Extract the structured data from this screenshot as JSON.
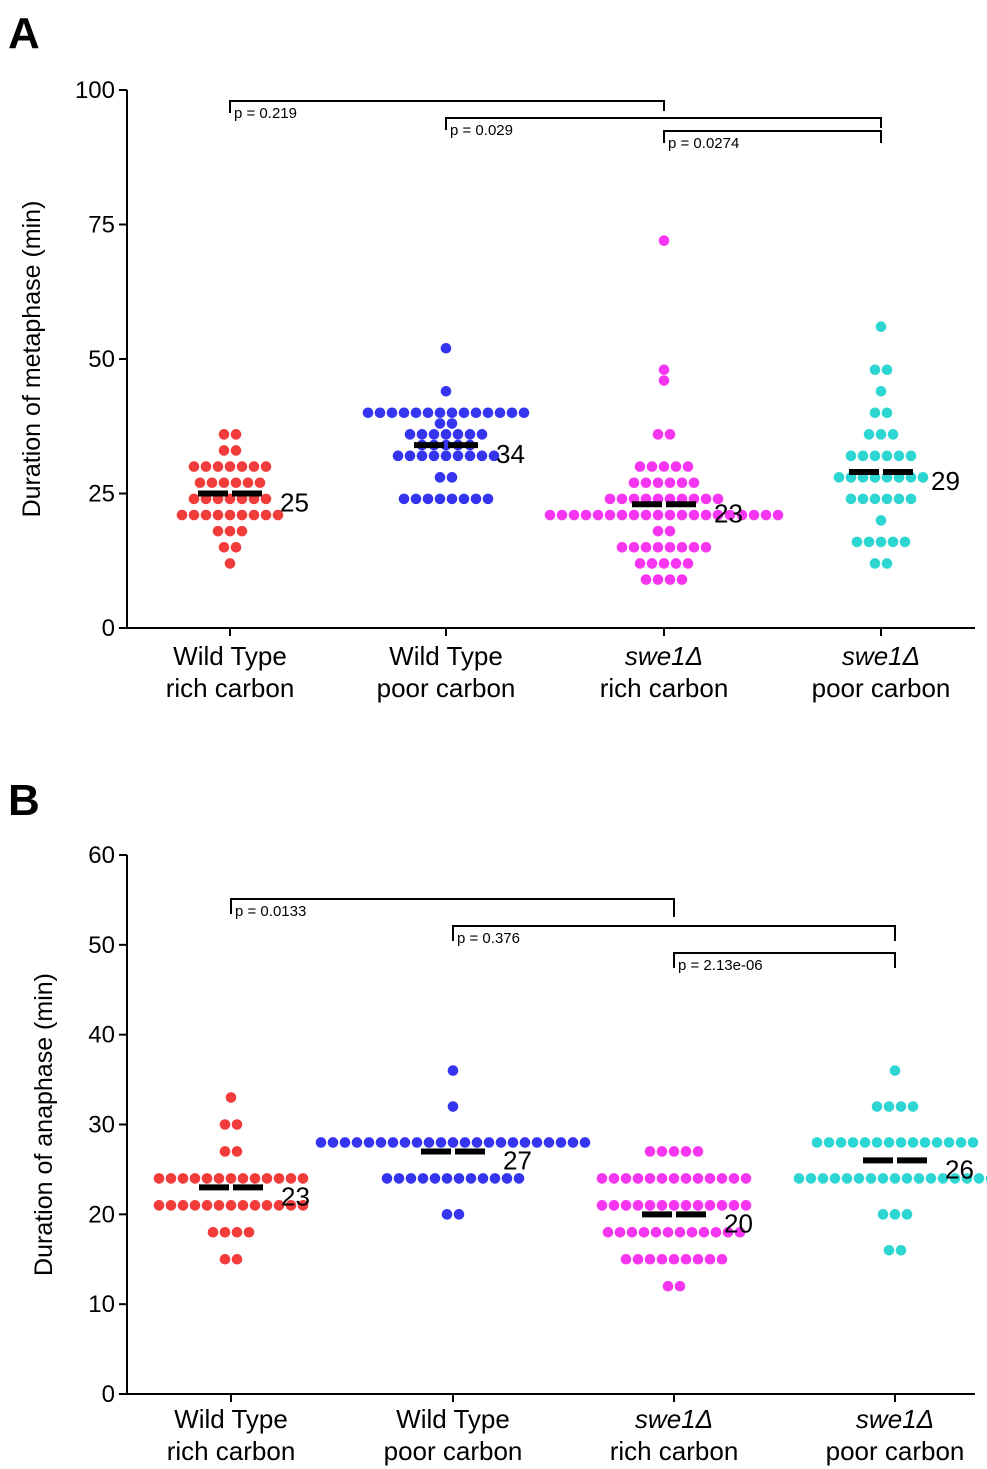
{
  "chart_data": [
    {
      "type": "scatter",
      "panel": "A",
      "ylabel": "Duration of metaphase (min)",
      "ylim": [
        0,
        100
      ],
      "yticks": [
        0,
        25,
        50,
        75,
        100
      ],
      "categories": [
        {
          "line1": "Wild Type",
          "line2": "rich carbon",
          "italic": false
        },
        {
          "line1": "Wild Type",
          "line2": "poor carbon",
          "italic": false
        },
        {
          "line1": "swe1Δ",
          "line2": "rich carbon",
          "italic": true
        },
        {
          "line1": "swe1Δ",
          "line2": "poor carbon",
          "italic": true
        }
      ],
      "series": [
        {
          "color": "#f23b3b",
          "median": 25,
          "median_label": "25",
          "values": [
            36,
            36,
            33,
            33,
            30,
            30,
            30,
            30,
            30,
            30,
            30,
            27,
            27,
            27,
            27,
            27,
            27,
            24,
            24,
            24,
            24,
            24,
            24,
            24,
            21,
            21,
            21,
            21,
            21,
            21,
            21,
            21,
            21,
            18,
            18,
            18,
            15,
            15,
            12
          ]
        },
        {
          "color": "#3535f0",
          "median": 34,
          "median_label": "34",
          "values": [
            52,
            44,
            40,
            40,
            40,
            40,
            40,
            40,
            40,
            40,
            40,
            40,
            40,
            40,
            40,
            40,
            38,
            38,
            36,
            36,
            36,
            36,
            36,
            36,
            36,
            34,
            34,
            34,
            34,
            34,
            32,
            32,
            32,
            32,
            32,
            32,
            32,
            32,
            32,
            28,
            28,
            24,
            24,
            24,
            24,
            24,
            24,
            24,
            24
          ]
        },
        {
          "color": "#f535f0",
          "median": 23,
          "median_label": "23",
          "values": [
            72,
            48,
            46,
            36,
            36,
            30,
            30,
            30,
            30,
            30,
            27,
            27,
            27,
            27,
            27,
            27,
            24,
            24,
            24,
            24,
            24,
            24,
            24,
            24,
            24,
            24,
            21,
            21,
            21,
            21,
            21,
            21,
            21,
            21,
            21,
            21,
            21,
            21,
            21,
            21,
            21,
            21,
            21,
            21,
            21,
            21,
            18,
            18,
            15,
            15,
            15,
            15,
            15,
            15,
            15,
            15,
            12,
            12,
            12,
            12,
            12,
            9,
            9,
            9,
            9
          ]
        },
        {
          "color": "#2ed6d2",
          "median": 29,
          "median_label": "29",
          "values": [
            56,
            48,
            48,
            44,
            40,
            40,
            36,
            36,
            36,
            32,
            32,
            32,
            32,
            32,
            32,
            28,
            28,
            28,
            28,
            28,
            28,
            28,
            28,
            24,
            24,
            24,
            24,
            24,
            24,
            20,
            16,
            16,
            16,
            16,
            16,
            12,
            12
          ]
        }
      ],
      "comparisons": [
        {
          "from": 0,
          "to": 2,
          "label": "p = 0.219"
        },
        {
          "from": 1,
          "to": 3,
          "label": "p = 0.029"
        },
        {
          "from": 2,
          "to": 3,
          "label": "p = 0.0274"
        }
      ]
    },
    {
      "type": "scatter",
      "panel": "B",
      "ylabel": "Duration of anaphase (min)",
      "ylim": [
        0,
        60
      ],
      "yticks": [
        0,
        10,
        20,
        30,
        40,
        50,
        60
      ],
      "categories": [
        {
          "line1": "Wild Type",
          "line2": "rich carbon",
          "italic": false
        },
        {
          "line1": "Wild Type",
          "line2": "poor carbon",
          "italic": false
        },
        {
          "line1": "swe1Δ",
          "line2": "rich carbon",
          "italic": true
        },
        {
          "line1": "swe1Δ",
          "line2": "poor carbon",
          "italic": true
        }
      ],
      "series": [
        {
          "color": "#f23b3b",
          "median": 23,
          "median_label": "23",
          "values": [
            33,
            30,
            30,
            27,
            27,
            24,
            24,
            24,
            24,
            24,
            24,
            24,
            24,
            24,
            24,
            24,
            24,
            24,
            21,
            21,
            21,
            21,
            21,
            21,
            21,
            21,
            21,
            21,
            21,
            21,
            21,
            18,
            18,
            18,
            18,
            15,
            15
          ]
        },
        {
          "color": "#3535f0",
          "median": 27,
          "median_label": "27",
          "values": [
            36,
            32,
            28,
            28,
            28,
            28,
            28,
            28,
            28,
            28,
            28,
            28,
            28,
            28,
            28,
            28,
            28,
            28,
            28,
            28,
            28,
            28,
            28,
            28,
            28,
            24,
            24,
            24,
            24,
            24,
            24,
            24,
            24,
            24,
            24,
            24,
            24,
            20,
            20
          ]
        },
        {
          "color": "#f535f0",
          "median": 20,
          "median_label": "20",
          "values": [
            27,
            27,
            27,
            27,
            27,
            24,
            24,
            24,
            24,
            24,
            24,
            24,
            24,
            24,
            24,
            24,
            24,
            24,
            21,
            21,
            21,
            21,
            21,
            21,
            21,
            21,
            21,
            21,
            21,
            21,
            21,
            18,
            18,
            18,
            18,
            18,
            18,
            18,
            18,
            18,
            18,
            18,
            18,
            15,
            15,
            15,
            15,
            15,
            15,
            15,
            15,
            15,
            12,
            12
          ]
        },
        {
          "color": "#2ed6d2",
          "median": 26,
          "median_label": "26",
          "values": [
            36,
            32,
            32,
            32,
            32,
            28,
            28,
            28,
            28,
            28,
            28,
            28,
            28,
            28,
            28,
            28,
            28,
            28,
            28,
            24,
            24,
            24,
            24,
            24,
            24,
            24,
            24,
            24,
            24,
            24,
            24,
            24,
            24,
            24,
            24,
            24,
            20,
            20,
            20,
            16,
            16
          ]
        }
      ],
      "comparisons": [
        {
          "from": 0,
          "to": 2,
          "label": "p = 0.0133"
        },
        {
          "from": 1,
          "to": 3,
          "label": "p = 0.376"
        },
        {
          "from": 2,
          "to": 3,
          "label": "p = 2.13e-06"
        }
      ]
    }
  ],
  "panels": [
    "A",
    "B"
  ]
}
